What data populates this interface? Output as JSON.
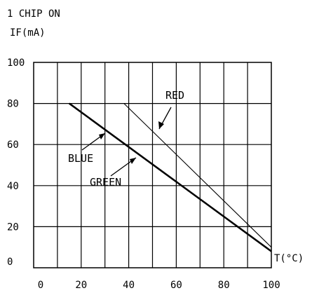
{
  "chart_data": {
    "type": "line",
    "title": "1 CHIP ON",
    "ylabel": "IF(mA)",
    "xlabel": "T(°C)",
    "xlim": [
      0,
      100
    ],
    "ylim": [
      0,
      100
    ],
    "x_ticks": [
      0,
      20,
      40,
      60,
      80,
      100
    ],
    "y_ticks": [
      0,
      20,
      40,
      60,
      80,
      100
    ],
    "x_tick_labels": [
      "0",
      "20",
      "40",
      "60",
      "80",
      "100"
    ],
    "y_tick_labels": [
      "0",
      "20",
      "40",
      "60",
      "80",
      "100"
    ],
    "grid": true,
    "series": [
      {
        "name": "RED",
        "color": "#000000",
        "style": "thin",
        "x": [
          38,
          100
        ],
        "y": [
          80,
          10
        ]
      },
      {
        "name": "BLUE",
        "color": "#000000",
        "style": "thick",
        "x": [
          15,
          100
        ],
        "y": [
          80,
          8
        ]
      },
      {
        "name": "GREEN",
        "color": "#000000",
        "style": "thick",
        "x": [
          15,
          100
        ],
        "y": [
          80,
          8
        ]
      }
    ],
    "annotations": [
      {
        "text": "RED",
        "points_to": "RED"
      },
      {
        "text": "BLUE",
        "points_to": "BLUE"
      },
      {
        "text": "GREEN",
        "points_to": "GREEN"
      }
    ]
  }
}
